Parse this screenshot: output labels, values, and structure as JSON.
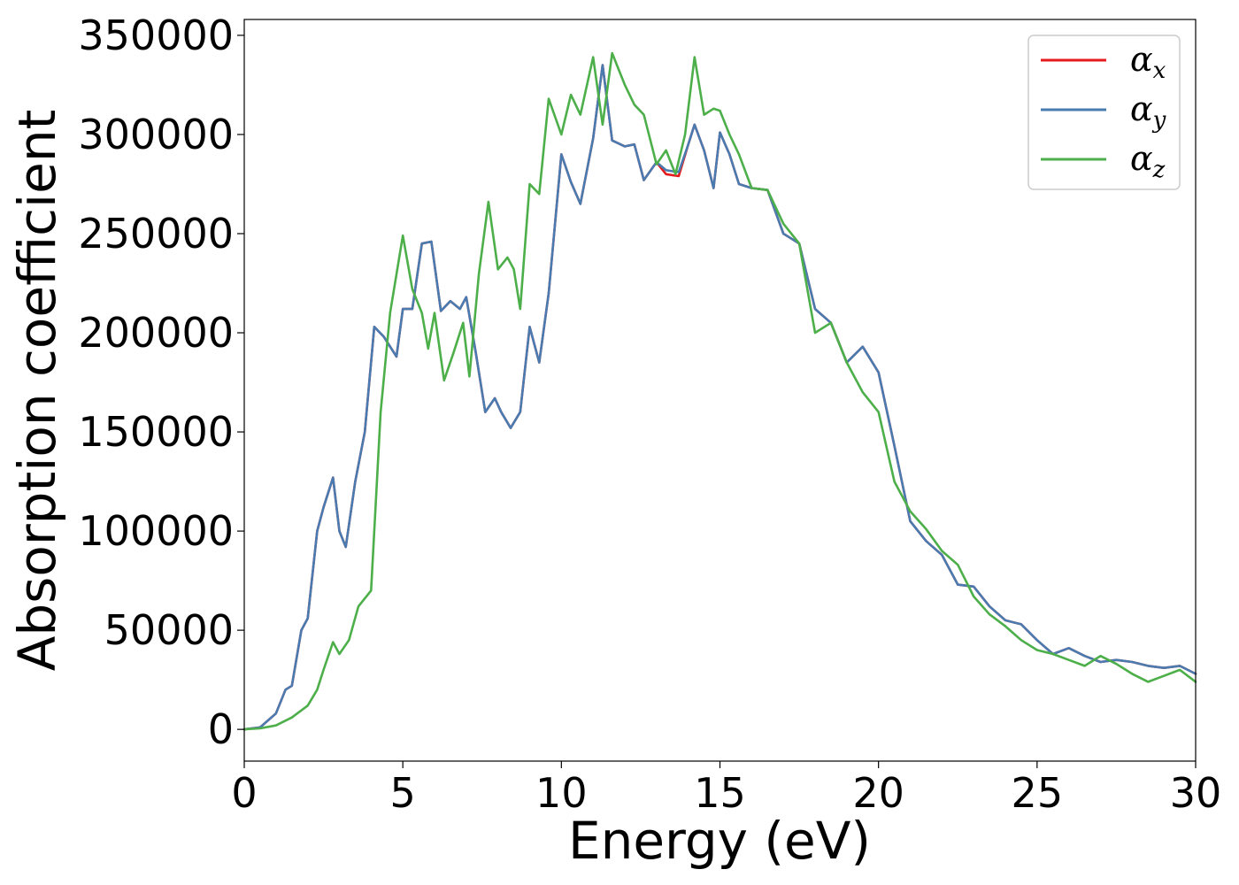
{
  "chart_data": {
    "type": "line",
    "xlabel": "Energy (eV)",
    "ylabel": "Absorption coefficient",
    "xlim": [
      0,
      30
    ],
    "ylim": [
      -16000,
      358000
    ],
    "x_ticks": [
      0,
      5,
      10,
      15,
      20,
      25,
      30
    ],
    "y_ticks": [
      0,
      50000,
      100000,
      150000,
      200000,
      250000,
      300000,
      350000
    ],
    "grid": false,
    "legend_position": "top-right",
    "series": [
      {
        "name": "αx",
        "legend_symbol": "α",
        "legend_subscript": "x",
        "color": "#e41a1c",
        "x": [
          0,
          0.5,
          1.0,
          1.3,
          1.5,
          1.8,
          2.0,
          2.3,
          2.5,
          2.8,
          3.0,
          3.2,
          3.5,
          3.8,
          4.1,
          4.4,
          4.8,
          5.0,
          5.3,
          5.6,
          5.9,
          6.2,
          6.5,
          6.8,
          7.0,
          7.3,
          7.6,
          7.9,
          8.1,
          8.4,
          8.7,
          9.0,
          9.3,
          9.6,
          10.0,
          10.3,
          10.6,
          11.0,
          11.3,
          11.6,
          12.0,
          12.3,
          12.6,
          13.0,
          13.3,
          13.7,
          14.0,
          14.2,
          14.5,
          14.8,
          15.0,
          15.3,
          15.6,
          16.0,
          16.5,
          17.0,
          17.5,
          18.0,
          18.5,
          19.0,
          19.5,
          20.0,
          20.5,
          21.0,
          21.5,
          22.0,
          22.5,
          23.0,
          23.5,
          24.0,
          24.5,
          25.0,
          25.5,
          26.0,
          26.5,
          27.0,
          27.5,
          28.0,
          28.5,
          29.0,
          29.5,
          30.0
        ],
        "values": [
          0,
          1000,
          8000,
          20000,
          22000,
          50000,
          56000,
          100000,
          112000,
          127000,
          100000,
          92000,
          125000,
          150000,
          203000,
          198000,
          188000,
          212000,
          212000,
          245000,
          246000,
          211000,
          216000,
          212000,
          218000,
          190000,
          160000,
          167000,
          160000,
          152000,
          160000,
          203000,
          185000,
          220000,
          290000,
          276000,
          265000,
          298000,
          335000,
          297000,
          294000,
          295000,
          277000,
          286000,
          280000,
          279000,
          295000,
          305000,
          292000,
          273000,
          301000,
          290000,
          275000,
          273000,
          272000,
          250000,
          245000,
          212000,
          205000,
          185000,
          193000,
          180000,
          143000,
          105000,
          95000,
          88000,
          73000,
          72000,
          62000,
          55000,
          53000,
          45000,
          38000,
          41000,
          37000,
          34000,
          35000,
          34000,
          32000,
          31000,
          32000,
          28000
        ]
      },
      {
        "name": "αy",
        "legend_symbol": "α",
        "legend_subscript": "y",
        "color": "#4a7bb0",
        "x": [
          0,
          0.5,
          1.0,
          1.3,
          1.5,
          1.8,
          2.0,
          2.3,
          2.5,
          2.8,
          3.0,
          3.2,
          3.5,
          3.8,
          4.1,
          4.4,
          4.8,
          5.0,
          5.3,
          5.6,
          5.9,
          6.2,
          6.5,
          6.8,
          7.0,
          7.3,
          7.6,
          7.9,
          8.1,
          8.4,
          8.7,
          9.0,
          9.3,
          9.6,
          10.0,
          10.3,
          10.6,
          11.0,
          11.3,
          11.6,
          12.0,
          12.3,
          12.6,
          13.0,
          13.3,
          13.7,
          14.0,
          14.2,
          14.5,
          14.8,
          15.0,
          15.3,
          15.6,
          16.0,
          16.5,
          17.0,
          17.5,
          18.0,
          18.5,
          19.0,
          19.5,
          20.0,
          20.5,
          21.0,
          21.5,
          22.0,
          22.5,
          23.0,
          23.5,
          24.0,
          24.5,
          25.0,
          25.5,
          26.0,
          26.5,
          27.0,
          27.5,
          28.0,
          28.5,
          29.0,
          29.5,
          30.0
        ],
        "values": [
          0,
          1000,
          8000,
          20000,
          22000,
          50000,
          56000,
          100000,
          112000,
          127000,
          100000,
          92000,
          125000,
          150000,
          203000,
          198000,
          188000,
          212000,
          212000,
          245000,
          246000,
          211000,
          216000,
          212000,
          218000,
          190000,
          160000,
          167000,
          160000,
          152000,
          160000,
          203000,
          185000,
          220000,
          290000,
          276000,
          265000,
          298000,
          335000,
          297000,
          294000,
          295000,
          277000,
          286000,
          282000,
          281000,
          295000,
          305000,
          292000,
          273000,
          301000,
          290000,
          275000,
          273000,
          272000,
          250000,
          245000,
          212000,
          205000,
          185000,
          193000,
          180000,
          143000,
          105000,
          95000,
          88000,
          73000,
          72000,
          62000,
          55000,
          53000,
          45000,
          38000,
          41000,
          37000,
          34000,
          35000,
          34000,
          32000,
          31000,
          32000,
          28000
        ]
      },
      {
        "name": "αz",
        "legend_symbol": "α",
        "legend_subscript": "z",
        "color": "#4daf4a",
        "x": [
          0,
          0.5,
          1.0,
          1.5,
          2.0,
          2.3,
          2.5,
          2.8,
          3.0,
          3.3,
          3.6,
          4.0,
          4.3,
          4.6,
          5.0,
          5.3,
          5.6,
          5.8,
          6.0,
          6.3,
          6.6,
          6.9,
          7.1,
          7.4,
          7.7,
          8.0,
          8.3,
          8.5,
          8.7,
          9.0,
          9.3,
          9.6,
          10.0,
          10.3,
          10.6,
          11.0,
          11.3,
          11.6,
          12.0,
          12.3,
          12.6,
          13.0,
          13.3,
          13.6,
          13.9,
          14.2,
          14.5,
          14.8,
          15.0,
          15.3,
          15.6,
          16.0,
          16.5,
          17.0,
          17.5,
          18.0,
          18.5,
          19.0,
          19.5,
          20.0,
          20.5,
          21.0,
          21.5,
          22.0,
          22.5,
          23.0,
          23.5,
          24.0,
          24.5,
          25.0,
          25.5,
          26.0,
          26.5,
          27.0,
          27.5,
          28.0,
          28.5,
          29.0,
          29.5,
          30.0
        ],
        "values": [
          0,
          500,
          2000,
          6000,
          12000,
          20000,
          30000,
          44000,
          38000,
          45000,
          62000,
          70000,
          160000,
          210000,
          249000,
          222000,
          210000,
          192000,
          210000,
          176000,
          190000,
          205000,
          178000,
          230000,
          266000,
          232000,
          238000,
          232000,
          212000,
          275000,
          270000,
          318000,
          300000,
          320000,
          310000,
          339000,
          305000,
          341000,
          325000,
          315000,
          310000,
          285000,
          292000,
          280000,
          300000,
          339000,
          310000,
          313000,
          312000,
          300000,
          290000,
          273000,
          272000,
          255000,
          245000,
          200000,
          205000,
          185000,
          170000,
          160000,
          125000,
          110000,
          101000,
          90000,
          83000,
          67000,
          58000,
          52000,
          45000,
          40000,
          38000,
          35000,
          32000,
          37000,
          33000,
          28000,
          24000,
          27000,
          30000,
          24000
        ]
      }
    ]
  }
}
